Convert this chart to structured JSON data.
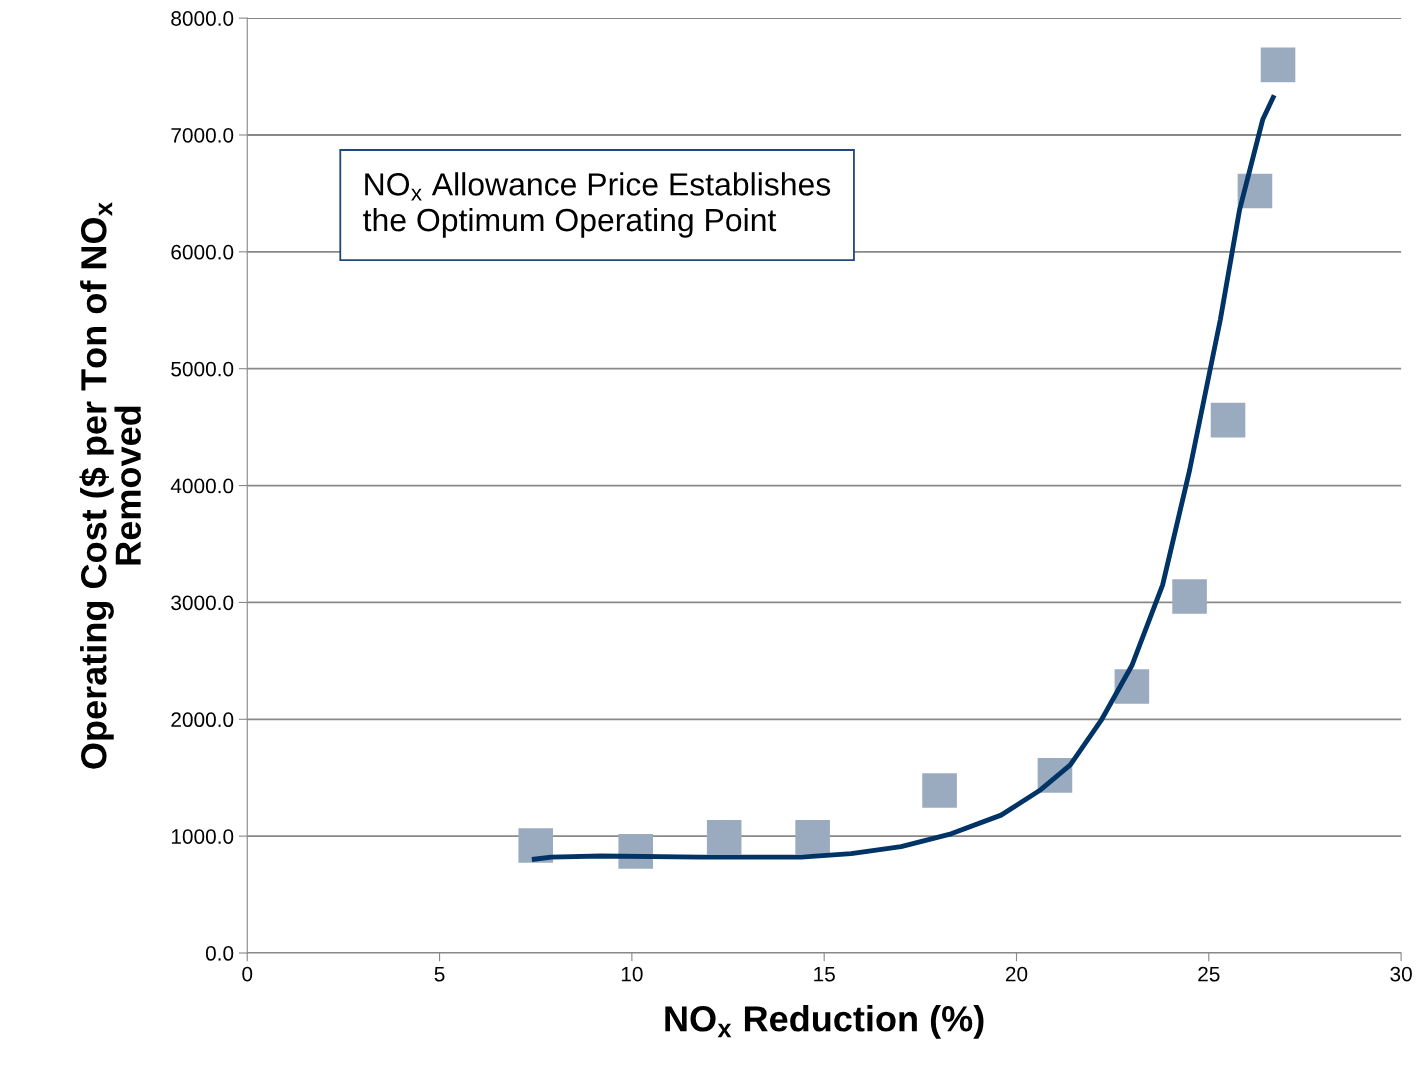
{
  "chart_data": {
    "type": "scatter",
    "xlabel": "NO$_{x}$ Reduction (%)",
    "ylabel": "Operating Cost ($ per Ton of NO$_{x}$\nRemoved",
    "annotations": [
      "NO$_{x}$ Allowance Price Establishes\nthe Optimum Operating Point"
    ],
    "series": [
      {
        "color": "#9aabbf",
        "marker": "square",
        "x": [
          7.5,
          10.1,
          12.4,
          14.7,
          18.0,
          21.0,
          23.0,
          24.5,
          25.5,
          26.2,
          26.8
        ],
        "values": [
          920,
          870,
          990,
          990,
          1390,
          1520,
          2280,
          3050,
          4560,
          6520,
          7600
        ]
      },
      {
        "type": "line",
        "color": "#003366",
        "marker": "none",
        "line_style": "solid",
        "x": [
          7.4,
          7.9,
          9.2,
          11.8,
          14.4,
          15.7,
          17.0,
          18.3,
          19.6,
          20.6,
          21.4,
          22.2,
          23.0,
          23.8,
          24.5,
          25.3,
          25.8,
          26.4,
          26.7
        ],
        "values": [
          800,
          820,
          830,
          820,
          820,
          850,
          910,
          1020,
          1180,
          1390,
          1610,
          1990,
          2460,
          3150,
          4130,
          5420,
          6360,
          7130,
          7340
        ]
      }
    ],
    "xlim": [
      0,
      30
    ],
    "xticks": [
      0,
      5,
      10,
      15,
      20,
      25,
      30
    ],
    "ylim": [
      0,
      8000
    ],
    "yticks": [
      {
        "value": 0,
        "label": "0.0"
      },
      {
        "value": 1000,
        "label": "1000.0"
      },
      {
        "value": 2000,
        "label": "2000.0"
      },
      {
        "value": 3000,
        "label": "3000.0"
      },
      {
        "value": 4000,
        "label": "4000.0"
      },
      {
        "value": 5000,
        "label": "5000.0"
      },
      {
        "value": 6000,
        "label": "6000.0"
      },
      {
        "value": 7000,
        "label": "7000.0"
      },
      {
        "value": 8000,
        "label": "8000.0"
      }
    ],
    "grid": "y",
    "legend": false
  }
}
